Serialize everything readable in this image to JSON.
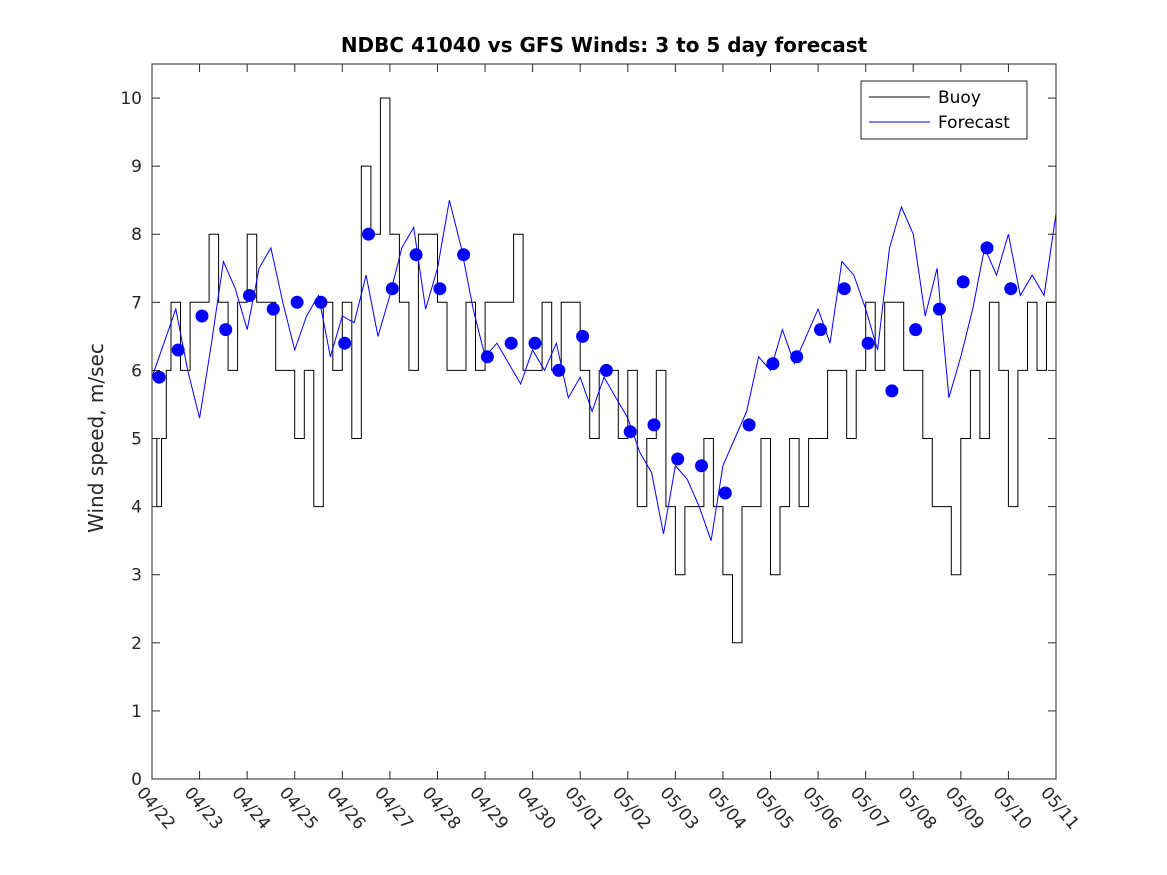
{
  "chart_data": {
    "type": "line",
    "title": "NDBC 41040 vs GFS Winds: 3 to 5 day forecast",
    "xlabel": "",
    "ylabel": "Wind speed, m/sec",
    "ylim": [
      0,
      10.5
    ],
    "yticks": [
      0,
      1,
      2,
      3,
      4,
      5,
      6,
      7,
      8,
      9,
      10
    ],
    "xlim": [
      0,
      19
    ],
    "xticks": [
      "04/22",
      "04/23",
      "04/24",
      "04/25",
      "04/26",
      "04/27",
      "04/28",
      "04/29",
      "04/30",
      "05/01",
      "05/02",
      "05/03",
      "05/04",
      "05/05",
      "05/06",
      "05/07",
      "05/08",
      "05/09",
      "05/10",
      "05/11"
    ],
    "legend": {
      "position": "top-right",
      "entries": [
        "Buoy",
        "Forecast"
      ]
    },
    "colors": {
      "buoy": "#000000",
      "forecast": "#0000ff"
    },
    "series": [
      {
        "name": "Buoy",
        "x": [
          0,
          0.1,
          0.2,
          0.3,
          0.4,
          0.5,
          0.6,
          0.8,
          1.0,
          1.2,
          1.4,
          1.6,
          1.8,
          2.0,
          2.2,
          2.4,
          2.6,
          2.8,
          3.0,
          3.2,
          3.4,
          3.6,
          3.8,
          4.0,
          4.2,
          4.4,
          4.6,
          4.8,
          5.0,
          5.2,
          5.4,
          5.6,
          5.8,
          6.0,
          6.2,
          6.4,
          6.6,
          6.8,
          7.0,
          7.2,
          7.4,
          7.6,
          7.8,
          8.0,
          8.2,
          8.4,
          8.6,
          8.8,
          9.0,
          9.2,
          9.4,
          9.6,
          9.8,
          10.0,
          10.2,
          10.4,
          10.6,
          10.8,
          11.0,
          11.2,
          11.4,
          11.6,
          11.8,
          12.0,
          12.2,
          12.4,
          12.6,
          12.8,
          13.0,
          13.2,
          13.4,
          13.6,
          13.8,
          14.0,
          14.2,
          14.4,
          14.6,
          14.8,
          15.0,
          15.2,
          15.4,
          15.6,
          15.8,
          16.0,
          16.2,
          16.4,
          16.6,
          16.8,
          17.0,
          17.2,
          17.4,
          17.6,
          17.8,
          18.0,
          18.2,
          18.4,
          18.6,
          18.8,
          19.0
        ],
        "values": [
          5,
          4,
          5,
          6,
          7,
          7,
          6,
          7,
          7,
          8,
          7,
          6,
          7,
          8,
          7,
          7,
          6,
          6,
          5,
          6,
          4,
          7,
          6,
          7,
          5,
          9,
          8,
          10,
          8,
          7,
          6,
          8,
          8,
          7,
          6,
          6,
          7,
          6,
          7,
          7,
          7,
          8,
          6,
          6,
          7,
          6,
          7,
          7,
          6,
          5,
          6,
          6,
          5,
          6,
          4,
          5,
          6,
          4,
          3,
          4,
          4,
          5,
          4,
          3,
          2,
          4,
          4,
          5,
          3,
          4,
          5,
          4,
          5,
          5,
          6,
          6,
          5,
          6,
          7,
          6,
          7,
          7,
          6,
          6,
          5,
          4,
          4,
          3,
          5,
          6,
          5,
          7,
          6,
          4,
          6,
          7,
          6,
          7,
          7
        ]
      },
      {
        "name": "Forecast",
        "x": [
          0,
          0.25,
          0.5,
          0.75,
          1.0,
          1.25,
          1.5,
          1.75,
          2.0,
          2.25,
          2.5,
          2.75,
          3.0,
          3.25,
          3.5,
          3.75,
          4.0,
          4.25,
          4.5,
          4.75,
          5.0,
          5.25,
          5.5,
          5.75,
          6.0,
          6.25,
          6.5,
          6.75,
          7.0,
          7.25,
          7.5,
          7.75,
          8.0,
          8.25,
          8.5,
          8.75,
          9.0,
          9.25,
          9.5,
          9.75,
          10.0,
          10.25,
          10.5,
          10.75,
          11.0,
          11.25,
          11.5,
          11.75,
          12.0,
          12.25,
          12.5,
          12.75,
          13.0,
          13.25,
          13.5,
          13.75,
          14.0,
          14.25,
          14.5,
          14.75,
          15.0,
          15.25,
          15.5,
          15.75,
          16.0,
          16.25,
          16.5,
          16.75,
          17.0,
          17.25,
          17.5,
          17.75,
          18.0,
          18.25,
          18.5,
          18.75,
          19.0
        ],
        "values": [
          5.9,
          6.4,
          6.9,
          6.0,
          5.3,
          6.4,
          7.6,
          7.2,
          6.6,
          7.5,
          7.8,
          7.0,
          6.3,
          6.8,
          7.1,
          6.2,
          6.8,
          6.7,
          7.4,
          6.5,
          7.1,
          7.8,
          8.1,
          6.9,
          7.5,
          8.5,
          7.8,
          6.9,
          6.2,
          6.4,
          6.1,
          5.8,
          6.3,
          6.0,
          6.4,
          5.6,
          5.9,
          5.4,
          5.9,
          5.6,
          5.3,
          4.8,
          4.5,
          3.6,
          4.6,
          4.4,
          4.0,
          3.5,
          4.6,
          5.0,
          5.4,
          6.2,
          6.0,
          6.6,
          6.1,
          6.5,
          6.9,
          6.4,
          7.6,
          7.4,
          6.9,
          6.3,
          7.8,
          8.4,
          8.0,
          6.8,
          7.5,
          5.6,
          6.2,
          6.9,
          7.8,
          7.4,
          8.0,
          7.1,
          7.4,
          7.1,
          8.3
        ]
      },
      {
        "name": "",
        "x": [
          0.15,
          0.55,
          1.05,
          1.55,
          2.05,
          2.55,
          3.05,
          3.55,
          4.05,
          4.55,
          5.05,
          5.55,
          6.05,
          6.55,
          7.05,
          7.55,
          8.05,
          8.55,
          9.05,
          9.55,
          10.05,
          10.55,
          11.05,
          11.55,
          12.05,
          12.55,
          13.05,
          13.55,
          14.05,
          14.55,
          15.05,
          15.55,
          16.05,
          16.55,
          17.05,
          17.55,
          18.05
        ],
        "values": [
          5.9,
          6.3,
          6.8,
          6.6,
          7.1,
          6.9,
          7.0,
          7.0,
          6.4,
          8.0,
          7.2,
          7.7,
          7.2,
          7.7,
          6.2,
          6.4,
          6.4,
          6.0,
          6.5,
          6.0,
          5.1,
          5.2,
          4.7,
          4.6,
          4.2,
          5.2,
          6.1,
          6.2,
          6.6,
          7.2,
          6.4,
          5.7,
          6.6,
          6.9,
          7.3,
          7.8,
          7.2
        ]
      }
    ]
  }
}
